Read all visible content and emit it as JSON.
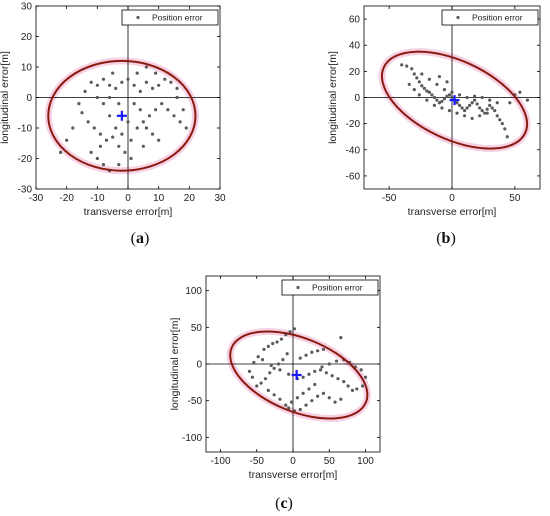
{
  "chart_data": [
    {
      "type": "scatter",
      "label": "a",
      "xlabel": "transverse error[m]",
      "ylabel": "longitudinal error[m]",
      "xlim": [
        -30,
        30
      ],
      "ylim": [
        -30,
        30
      ],
      "xticks": [
        -30,
        -20,
        -10,
        0,
        10,
        20,
        30
      ],
      "yticks": [
        -30,
        -20,
        -10,
        0,
        10,
        20,
        30
      ],
      "legend": {
        "position": "top-right",
        "entries": [
          "Position error"
        ]
      },
      "mean": [
        -2,
        -6
      ],
      "ellipse": {
        "center": [
          -2,
          -6
        ],
        "radii": [
          24,
          18
        ],
        "rotation_deg": 0
      },
      "crosshair": [
        0,
        0
      ],
      "grid": false,
      "series": [
        {
          "name": "Position error",
          "points": [
            [
              -12,
              5
            ],
            [
              -10,
              4
            ],
            [
              -8,
              6
            ],
            [
              -6,
              4
            ],
            [
              -4,
              3
            ],
            [
              -2,
              5
            ],
            [
              0,
              6
            ],
            [
              2,
              4
            ],
            [
              4,
              2
            ],
            [
              6,
              5
            ],
            [
              8,
              3
            ],
            [
              10,
              4
            ],
            [
              12,
              6
            ],
            [
              14,
              5
            ],
            [
              16,
              3
            ],
            [
              -14,
              2
            ],
            [
              -16,
              -2
            ],
            [
              -15,
              -5
            ],
            [
              -13,
              -8
            ],
            [
              -11,
              -10
            ],
            [
              -9,
              -12
            ],
            [
              -7,
              -14
            ],
            [
              -5,
              -13
            ],
            [
              -3,
              -16
            ],
            [
              -1,
              -18
            ],
            [
              1,
              -14
            ],
            [
              3,
              -10
            ],
            [
              5,
              -8
            ],
            [
              7,
              -6
            ],
            [
              9,
              -4
            ],
            [
              11,
              -2
            ],
            [
              13,
              -4
            ],
            [
              15,
              -6
            ],
            [
              17,
              -8
            ],
            [
              19,
              -10
            ],
            [
              18,
              -4
            ],
            [
              16,
              0
            ],
            [
              -8,
              -2
            ],
            [
              -6,
              -6
            ],
            [
              -4,
              -10
            ],
            [
              -2,
              -12
            ],
            [
              0,
              -8
            ],
            [
              2,
              -2
            ],
            [
              4,
              -4
            ],
            [
              6,
              -10
            ],
            [
              8,
              -12
            ],
            [
              10,
              -14
            ],
            [
              -12,
              -18
            ],
            [
              -10,
              -20
            ],
            [
              -8,
              -22
            ],
            [
              -6,
              -24
            ],
            [
              -18,
              -10
            ],
            [
              -20,
              -14
            ],
            [
              -22,
              -18
            ],
            [
              -10,
              0
            ],
            [
              -6,
              0
            ],
            [
              -3,
              -2
            ],
            [
              3,
              8
            ],
            [
              6,
              10
            ],
            [
              9,
              8
            ],
            [
              -5,
              8
            ],
            [
              -9,
              -16
            ],
            [
              -3,
              -22
            ],
            [
              1,
              -20
            ],
            [
              5,
              -16
            ]
          ]
        }
      ]
    },
    {
      "type": "scatter",
      "label": "b",
      "xlabel": "transverse error[m]",
      "ylabel": "longitudinal error[m]",
      "xlim": [
        -70,
        70
      ],
      "ylim": [
        -70,
        70
      ],
      "xticks": [
        -50,
        0,
        50
      ],
      "yticks": [
        -60,
        -40,
        -20,
        0,
        20,
        40,
        60
      ],
      "legend": {
        "position": "top-right",
        "entries": [
          "Position error"
        ]
      },
      "mean": [
        2,
        -2
      ],
      "ellipse": {
        "center": [
          2,
          -2
        ],
        "radii": [
          62,
          30
        ],
        "rotation_deg": -25
      },
      "crosshair": [
        0,
        0
      ],
      "grid": false,
      "series": [
        {
          "name": "Position error",
          "points": [
            [
              -40,
              25
            ],
            [
              -36,
              24
            ],
            [
              -32,
              22
            ],
            [
              -30,
              18
            ],
            [
              -28,
              15
            ],
            [
              -26,
              12
            ],
            [
              -24,
              9
            ],
            [
              -22,
              7
            ],
            [
              -20,
              5
            ],
            [
              -18,
              4
            ],
            [
              -16,
              2
            ],
            [
              -14,
              0
            ],
            [
              -12,
              -2
            ],
            [
              -10,
              -4
            ],
            [
              -8,
              -3
            ],
            [
              -6,
              -1
            ],
            [
              -4,
              1
            ],
            [
              -2,
              2
            ],
            [
              0,
              0
            ],
            [
              2,
              -2
            ],
            [
              4,
              -4
            ],
            [
              6,
              -6
            ],
            [
              8,
              -8
            ],
            [
              10,
              -10
            ],
            [
              12,
              -8
            ],
            [
              14,
              -6
            ],
            [
              16,
              -4
            ],
            [
              18,
              -2
            ],
            [
              20,
              -5
            ],
            [
              22,
              -8
            ],
            [
              24,
              -10
            ],
            [
              26,
              -12
            ],
            [
              28,
              -9
            ],
            [
              30,
              -6
            ],
            [
              32,
              -8
            ],
            [
              34,
              -10
            ],
            [
              36,
              -14
            ],
            [
              38,
              -17
            ],
            [
              40,
              -20
            ],
            [
              42,
              -24
            ],
            [
              44,
              -30
            ],
            [
              -34,
              10
            ],
            [
              -30,
              6
            ],
            [
              -26,
              2
            ],
            [
              -20,
              -2
            ],
            [
              -14,
              -6
            ],
            [
              -8,
              -8
            ],
            [
              -2,
              -10
            ],
            [
              4,
              -12
            ],
            [
              10,
              -14
            ],
            [
              16,
              -16
            ],
            [
              22,
              -14
            ],
            [
              28,
              -12
            ],
            [
              -24,
              18
            ],
            [
              -18,
              14
            ],
            [
              -12,
              10
            ],
            [
              -6,
              6
            ],
            [
              0,
              4
            ],
            [
              6,
              2
            ],
            [
              12,
              0
            ],
            [
              18,
              1
            ],
            [
              24,
              0
            ],
            [
              30,
              -2
            ],
            [
              36,
              -4
            ],
            [
              46,
              -4
            ],
            [
              50,
              2
            ],
            [
              54,
              4
            ],
            [
              60,
              -2
            ],
            [
              -10,
              16
            ],
            [
              -4,
              12
            ]
          ]
        }
      ]
    },
    {
      "type": "scatter",
      "label": "c",
      "xlabel": "transverse error[m]",
      "ylabel": "longitudinal error[m]",
      "xlim": [
        -120,
        120
      ],
      "ylim": [
        -120,
        120
      ],
      "xticks": [
        -100,
        -50,
        0,
        50,
        100
      ],
      "yticks": [
        -100,
        -50,
        0,
        50,
        100
      ],
      "legend": {
        "position": "top-right",
        "entries": [
          "Position error"
        ]
      },
      "mean": [
        5,
        -15
      ],
      "ellipse": {
        "center": [
          8,
          -15
        ],
        "radii": [
          100,
          50
        ],
        "rotation_deg": -22
      },
      "crosshair": [
        0,
        0
      ],
      "grid": false,
      "series": [
        {
          "name": "Position error",
          "points": [
            [
              -40,
              20
            ],
            [
              -34,
              24
            ],
            [
              -28,
              28
            ],
            [
              -22,
              30
            ],
            [
              -16,
              34
            ],
            [
              -10,
              40
            ],
            [
              -4,
              44
            ],
            [
              2,
              48
            ],
            [
              -8,
              14
            ],
            [
              -14,
              6
            ],
            [
              -20,
              0
            ],
            [
              -26,
              -6
            ],
            [
              -32,
              -12
            ],
            [
              -38,
              -20
            ],
            [
              -44,
              -26
            ],
            [
              -50,
              -30
            ],
            [
              -56,
              -18
            ],
            [
              -60,
              -10
            ],
            [
              -54,
              2
            ],
            [
              -48,
              10
            ],
            [
              -42,
              6
            ],
            [
              -30,
              -2
            ],
            [
              -18,
              -8
            ],
            [
              -6,
              -14
            ],
            [
              6,
              -20
            ],
            [
              14,
              -18
            ],
            [
              22,
              -14
            ],
            [
              30,
              -10
            ],
            [
              38,
              -8
            ],
            [
              46,
              -12
            ],
            [
              54,
              -16
            ],
            [
              62,
              -20
            ],
            [
              70,
              -24
            ],
            [
              76,
              -30
            ],
            [
              82,
              -36
            ],
            [
              88,
              -34
            ],
            [
              96,
              -30
            ],
            [
              100,
              -18
            ],
            [
              94,
              -8
            ],
            [
              86,
              -4
            ],
            [
              78,
              2
            ],
            [
              70,
              6
            ],
            [
              60,
              4
            ],
            [
              50,
              0
            ],
            [
              40,
              -4
            ],
            [
              30,
              -28
            ],
            [
              22,
              -34
            ],
            [
              14,
              -40
            ],
            [
              6,
              -46
            ],
            [
              -2,
              -52
            ],
            [
              -10,
              -56
            ],
            [
              -18,
              -48
            ],
            [
              -26,
              -42
            ],
            [
              -34,
              -36
            ],
            [
              -6,
              -60
            ],
            [
              2,
              -64
            ],
            [
              10,
              -62
            ],
            [
              18,
              -56
            ],
            [
              26,
              -50
            ],
            [
              34,
              -44
            ],
            [
              42,
              -40
            ],
            [
              50,
              -46
            ],
            [
              58,
              -52
            ],
            [
              66,
              -48
            ],
            [
              10,
              8
            ],
            [
              18,
              12
            ],
            [
              26,
              16
            ],
            [
              34,
              18
            ],
            [
              42,
              20
            ],
            [
              66,
              36
            ]
          ]
        }
      ]
    }
  ],
  "panel_labels": [
    {
      "label_open": "(",
      "label_letter": "a",
      "label_close": ")"
    },
    {
      "label_open": "(",
      "label_letter": "b",
      "label_close": ")"
    },
    {
      "label_open": "(",
      "label_letter": "c",
      "label_close": ")"
    }
  ],
  "colors": {
    "points": "#5a5a5a",
    "ellipse": "#8b1a10",
    "mean_marker": "#1a1aff",
    "axes": "#000000"
  }
}
